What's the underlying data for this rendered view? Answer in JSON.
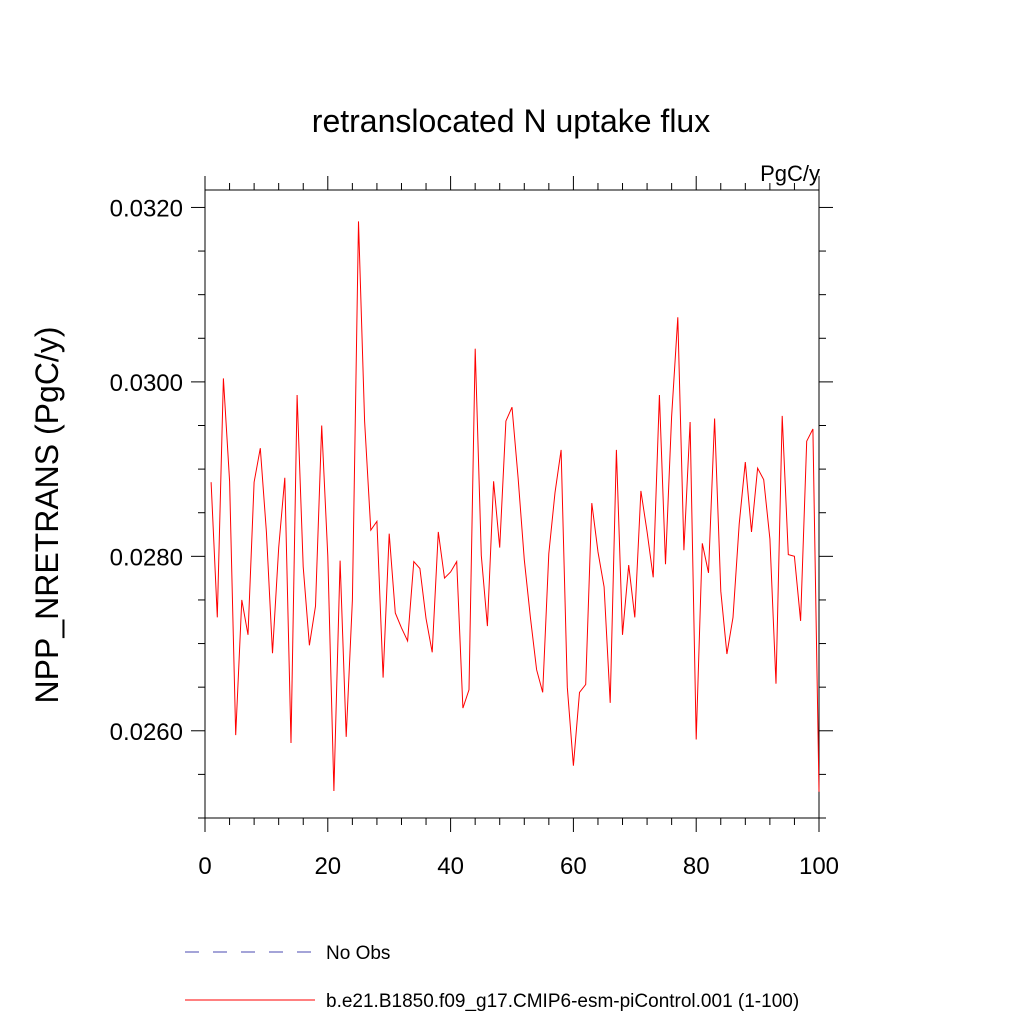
{
  "chart_data": {
    "type": "line",
    "title": "retranslocated N uptake flux",
    "units": "PgC/y",
    "xlabel": "",
    "ylabel": "NPP_NRETRANS  (PgC/y)",
    "xlim": [
      0,
      100
    ],
    "ylim": [
      0.025,
      0.0322
    ],
    "xticks": [
      0,
      20,
      40,
      60,
      80,
      100
    ],
    "xtick_labels": [
      "0",
      "20",
      "40",
      "60",
      "80",
      "100"
    ],
    "yticks": [
      0.026,
      0.028,
      0.03,
      0.032
    ],
    "ytick_labels": [
      "0.0260",
      "0.0280",
      "0.0300",
      "0.0320"
    ],
    "grid": false,
    "legend_position": "bottom",
    "series": [
      {
        "name": "b.e21.B1850.f09_g17.CMIP6-esm-piControl.001 (1-100)",
        "color": "#ff0000",
        "style": "solid",
        "x": [
          1,
          2,
          3,
          4,
          5,
          6,
          7,
          8,
          9,
          10,
          11,
          12,
          13,
          14,
          15,
          16,
          17,
          18,
          19,
          20,
          21,
          22,
          23,
          24,
          25,
          26,
          27,
          28,
          29,
          30,
          31,
          32,
          33,
          34,
          35,
          36,
          37,
          38,
          39,
          40,
          41,
          42,
          43,
          44,
          45,
          46,
          47,
          48,
          49,
          50,
          51,
          52,
          53,
          54,
          55,
          56,
          57,
          58,
          59,
          60,
          61,
          62,
          63,
          64,
          65,
          66,
          67,
          68,
          69,
          70,
          71,
          72,
          73,
          74,
          75,
          76,
          77,
          78,
          79,
          80,
          81,
          82,
          83,
          84,
          85,
          86,
          87,
          88,
          89,
          90,
          91,
          92,
          93,
          94,
          95,
          96,
          97,
          98,
          99,
          100
        ],
        "values": [
          0.02885,
          0.0273,
          0.03004,
          0.02886,
          0.02595,
          0.0275,
          0.0271,
          0.02885,
          0.02924,
          0.02828,
          0.02689,
          0.0281,
          0.0289,
          0.02586,
          0.02985,
          0.02788,
          0.02698,
          0.02743,
          0.0295,
          0.028,
          0.02531,
          0.02795,
          0.02593,
          0.0275,
          0.03184,
          0.02955,
          0.0283,
          0.0284,
          0.02661,
          0.02826,
          0.02735,
          0.02718,
          0.02703,
          0.02794,
          0.02786,
          0.02729,
          0.0269,
          0.02828,
          0.02775,
          0.02782,
          0.02794,
          0.02626,
          0.02647,
          0.03038,
          0.02801,
          0.0272,
          0.02886,
          0.0281,
          0.02955,
          0.02971,
          0.0289,
          0.02796,
          0.0273,
          0.0267,
          0.02644,
          0.02803,
          0.02873,
          0.02922,
          0.0265,
          0.0256,
          0.02644,
          0.02653,
          0.02861,
          0.02805,
          0.02765,
          0.02632,
          0.02922,
          0.0271,
          0.0279,
          0.0273,
          0.02875,
          0.02828,
          0.02776,
          0.02985,
          0.02791,
          0.0296,
          0.03074,
          0.02807,
          0.02954,
          0.0259,
          0.02815,
          0.02781,
          0.02958,
          0.0276,
          0.02688,
          0.0273,
          0.02837,
          0.02908,
          0.02828,
          0.02901,
          0.02888,
          0.0282,
          0.02654,
          0.02961,
          0.02802,
          0.028,
          0.02726,
          0.02932,
          0.02946,
          0.0253
        ]
      }
    ]
  },
  "legend": {
    "items": [
      {
        "label": "No Obs",
        "color": "#4a4ab0",
        "style": "dashed"
      },
      {
        "label": "b.e21.B1850.f09_g17.CMIP6-esm-piControl.001 (1-100)",
        "color": "#ff0000",
        "style": "solid"
      }
    ]
  }
}
